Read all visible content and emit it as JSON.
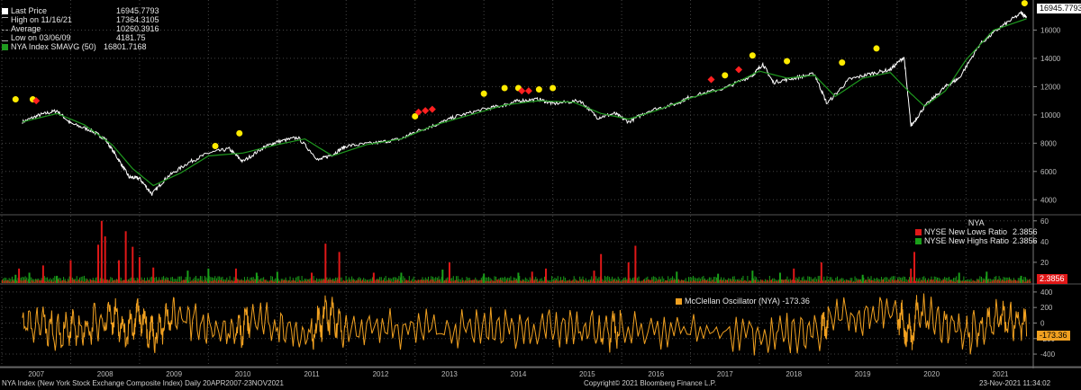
{
  "legend": {
    "last_price_label": "Last Price",
    "last_price_value": "16945.7793",
    "high_label": "High on 11/16/21",
    "high_value": "17364.3105",
    "avg_label": "Average",
    "avg_value": "10260.3916",
    "low_label": "Low on 03/06/09",
    "low_value": "4181.75",
    "sma_label": "NYA Index SMAVG (50)",
    "sma_value": "16801.7168"
  },
  "colors": {
    "price": "#ffffff",
    "sma": "#1f9a1f",
    "dots": "#ffeb00",
    "diamonds": "#ff2020",
    "new_lows": "#e01818",
    "new_highs": "#1aa01a",
    "oscillator": "#f0a020",
    "axis": "#bbbbbb"
  },
  "breadth_panel": {
    "title": "NYA",
    "lows_label": "NYSE New Lows Ratio",
    "lows_value": "2.3856",
    "highs_label": "NYSE New Highs Ratio",
    "highs_value": "2.3856",
    "value_tag": "2.3856"
  },
  "osc_panel": {
    "label": "McClellan Oscillator (NYA)",
    "value": "-173.36",
    "value_tag": "-173.36"
  },
  "price_tag": "16945.7793",
  "footer": {
    "left": "NYA Index (New York Stock Exchange Composite Index)  Daily 20APR2007-23NOV2021",
    "center": "Copyright© 2021 Bloomberg Finance L.P.",
    "right": "23-Nov-2021 11:34:02"
  },
  "chart_data": {
    "type": "line",
    "panels": [
      {
        "name": "price",
        "ylim": [
          3000,
          18000
        ],
        "yticks": [
          "4000",
          "6000",
          "8000",
          "10000",
          "12000",
          "14000",
          "16000"
        ],
        "series": [
          {
            "name": "Last Price",
            "x": [
              2007.3,
              2007.55,
              2007.8,
              2008.0,
              2008.3,
              2008.5,
              2008.7,
              2008.85,
              2009.0,
              2009.18,
              2009.4,
              2009.7,
              2010.0,
              2010.3,
              2010.5,
              2010.8,
              2011.0,
              2011.3,
              2011.6,
              2011.8,
              2012.0,
              2012.4,
              2012.8,
              2013.0,
              2013.3,
              2013.6,
              2014.0,
              2014.3,
              2014.5,
              2014.8,
              2015.0,
              2015.4,
              2015.65,
              2015.9,
              2016.1,
              2016.4,
              2016.8,
              2017.0,
              2017.5,
              2017.9,
              2018.05,
              2018.2,
              2018.5,
              2018.8,
              2018.98,
              2019.3,
              2019.6,
              2019.9,
              2020.1,
              2020.2,
              2020.4,
              2020.7,
              2020.9,
              2021.2,
              2021.5,
              2021.8,
              2021.88
            ],
            "y": [
              9500,
              10000,
              10300,
              9400,
              8900,
              8300,
              6800,
              5600,
              5500,
              4400,
              5600,
              6600,
              7300,
              7600,
              6700,
              7700,
              8100,
              8400,
              6800,
              7200,
              7800,
              8000,
              8300,
              8800,
              9300,
              9900,
              10400,
              10700,
              11000,
              11100,
              10800,
              11000,
              9800,
              10100,
              9500,
              10300,
              10800,
              11300,
              11900,
              12800,
              13600,
              12300,
              12600,
              12900,
              10800,
              12500,
              12900,
              13200,
              14100,
              9200,
              10600,
              12000,
              12600,
              15000,
              16200,
              17200,
              16946
            ]
          },
          {
            "name": "NYA Index SMAVG (50)",
            "x": [
              2007.3,
              2007.8,
              2008.2,
              2008.6,
              2008.9,
              2009.2,
              2009.6,
              2010.0,
              2010.5,
              2011.0,
              2011.4,
              2011.8,
              2012.3,
              2012.8,
              2013.3,
              2013.8,
              2014.3,
              2014.8,
              2015.3,
              2015.7,
              2016.1,
              2016.5,
              2017.0,
              2017.5,
              2018.0,
              2018.4,
              2018.8,
              2019.1,
              2019.5,
              2019.9,
              2020.2,
              2020.4,
              2020.7,
              2021.0,
              2021.4,
              2021.88
            ],
            "y": [
              9500,
              10100,
              9300,
              7900,
              6200,
              5000,
              5900,
              7100,
              7300,
              7900,
              8300,
              7100,
              7900,
              8300,
              9300,
              10000,
              10700,
              11000,
              10900,
              10100,
              9700,
              10300,
              11200,
              11900,
              13100,
              12600,
              12800,
              11300,
              12600,
              13000,
              11500,
              10600,
              11700,
              13900,
              16000,
              16802
            ]
          }
        ],
        "dot_markers": [
          [
            2007.2,
            11100
          ],
          [
            2007.45,
            11100
          ],
          [
            2010.1,
            7800
          ],
          [
            2010.45,
            8700
          ],
          [
            2013.0,
            9900
          ],
          [
            2014.0,
            11500
          ],
          [
            2014.3,
            11900
          ],
          [
            2014.5,
            11900
          ],
          [
            2014.8,
            11800
          ],
          [
            2015.0,
            11900
          ],
          [
            2017.5,
            12800
          ],
          [
            2017.9,
            14200
          ],
          [
            2018.4,
            13800
          ],
          [
            2019.2,
            13700
          ],
          [
            2019.7,
            14700
          ],
          [
            2021.85,
            17900
          ]
        ],
        "diamond_markers": [
          [
            2007.5,
            11000
          ],
          [
            2013.05,
            10200
          ],
          [
            2013.15,
            10300
          ],
          [
            2013.25,
            10400
          ],
          [
            2014.55,
            11700
          ],
          [
            2014.65,
            11700
          ],
          [
            2017.3,
            12500
          ],
          [
            2017.7,
            13200
          ]
        ]
      },
      {
        "name": "breadth",
        "ylim": [
          0,
          65
        ],
        "yticks": [
          "20",
          "40",
          "60"
        ],
        "series": [
          {
            "name": "NYSE New Lows Ratio",
            "x": [
              2007.25,
              2007.6,
              2008.0,
              2008.4,
              2008.45,
              2008.5,
              2008.7,
              2008.8,
              2008.9,
              2009.0,
              2009.2,
              2010.4,
              2011.5,
              2011.7,
              2011.9,
              2012.4,
              2013.5,
              2014.7,
              2014.9,
              2015.6,
              2015.7,
              2016.1,
              2016.2,
              2018.5,
              2018.9,
              2020.2,
              2020.25
            ],
            "y": [
              14,
              17,
              22,
              37,
              60,
              45,
              22,
              50,
              35,
              25,
              15,
              14,
              10,
              38,
              30,
              10,
              20,
              11,
              14,
              12,
              28,
              20,
              36,
              14,
              20,
              14,
              30
            ]
          },
          {
            "name": "NYSE New Highs Ratio",
            "x": [
              2007.2,
              2007.4,
              2007.8,
              2009.7,
              2010.0,
              2010.7,
              2011.0,
              2012.8,
              2013.4,
              2014.0,
              2014.5,
              2016.8,
              2017.4,
              2017.9,
              2018.3,
              2019.5,
              2020.9,
              2021.3,
              2021.8
            ],
            "y": [
              8,
              10,
              7,
              12,
              14,
              10,
              11,
              10,
              13,
              9,
              10,
              11,
              9,
              12,
              10,
              8,
              10,
              11,
              7
            ]
          }
        ]
      },
      {
        "name": "oscillator",
        "ylim": [
          -550,
          480
        ],
        "yticks": [
          "-400",
          "-200",
          "0",
          "200",
          "400"
        ],
        "series": [
          {
            "name": "McClellan Oscillator (NYA)",
            "x": [
              2007.3,
              2007.8,
              2008.2,
              2008.6,
              2008.8,
              2009.0,
              2009.2,
              2009.5,
              2010.4,
              2010.6,
              2011.5,
              2011.7,
              2012.0,
              2013.5,
              2014.7,
              2015.7,
              2016.0,
              2017.9,
              2018.9,
              2019.0,
              2020.0,
              2020.2,
              2020.3,
              2021.0,
              2021.5,
              2021.88
            ],
            "y": [
              100,
              -300,
              -250,
              320,
              -380,
              320,
              -450,
              300,
              -400,
              200,
              -420,
              300,
              -200,
              -250,
              -200,
              -300,
              -250,
              -380,
              -350,
              250,
              300,
              -450,
              400,
              -420,
              200,
              -173
            ]
          }
        ]
      }
    ],
    "x_ticks": [
      "2007",
      "2008",
      "2009",
      "2010",
      "2011",
      "2012",
      "2013",
      "2014",
      "2015",
      "2016",
      "2017",
      "2018",
      "2019",
      "2020",
      "2021"
    ],
    "xlim": [
      2007.0,
      2021.95
    ]
  }
}
